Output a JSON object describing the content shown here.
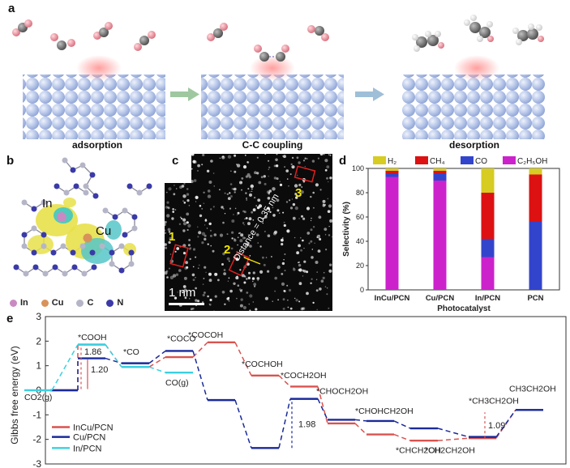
{
  "panel_a": {
    "label": "a",
    "stages": [
      "adsorption",
      "C-C coupling",
      "desorption"
    ]
  },
  "panel_b": {
    "label": "b",
    "in_label": "In",
    "cu_label": "Cu",
    "legend": [
      {
        "text": "In",
        "color": "#c98ac4"
      },
      {
        "text": "Cu",
        "color": "#d9925a"
      },
      {
        "text": "C",
        "color": "#b5b5c8"
      },
      {
        "text": "N",
        "color": "#3a3aa8"
      }
    ]
  },
  "panel_c": {
    "label": "c",
    "sites": [
      "1",
      "2",
      "3"
    ],
    "distance_text": "Distance = 0.35 nm",
    "scale_bar": "1 nm"
  },
  "panel_d": {
    "label": "d",
    "chart_data": {
      "type": "bar",
      "stacked": true,
      "categories": [
        "InCu/PCN",
        "Cu/PCN",
        "In/PCN",
        "PCN"
      ],
      "series": [
        {
          "name": "C2H5OH",
          "color": "#cc22cc",
          "values": [
            93,
            90,
            27,
            0
          ]
        },
        {
          "name": "CO",
          "color": "#3344cc",
          "values": [
            3,
            6,
            15,
            56
          ]
        },
        {
          "name": "CH4",
          "color": "#dd1111",
          "values": [
            2,
            2,
            38,
            39
          ]
        },
        {
          "name": "H2",
          "color": "#d6cc22",
          "values": [
            2,
            2,
            20,
            5
          ]
        }
      ],
      "legend_labels": [
        "H₂",
        "CH₄",
        "CO",
        "C₂H₅OH"
      ],
      "xlabel": "Photocatalyst",
      "ylabel": "Selectivity (%)",
      "ylim": [
        0,
        100
      ],
      "yticks": [
        0,
        20,
        40,
        60,
        80,
        100
      ]
    }
  },
  "panel_e": {
    "label": "e",
    "chart_data": {
      "type": "line",
      "ylabel": "Gibbs free energy (eV)",
      "ylim": [
        -3,
        3
      ],
      "yticks": [
        "3",
        "2",
        "1",
        "0",
        "-1",
        "-2",
        "-3"
      ],
      "series": [
        {
          "name": "InCu/PCN",
          "color": "#d9534f",
          "levels": [
            0,
            1.86,
            0.95,
            1.35,
            1.95,
            0.6,
            0.15,
            -1.35,
            -1.8,
            -2.05,
            -1.95,
            -0.8
          ]
        },
        {
          "name": "Cu/PCN",
          "color": "#1a2a9a",
          "levels": [
            0,
            1.3,
            1.1,
            1.6,
            -0.4,
            -2.35,
            -0.35,
            -1.2,
            -1.25,
            -1.55,
            -1.9,
            -0.8
          ]
        },
        {
          "name": "In/PCN",
          "color": "#3ad0e0",
          "levels": [
            0,
            1.86,
            0.95,
            0.72
          ]
        }
      ],
      "state_labels": [
        "*COOH",
        "*CO",
        "*COCO",
        "*COCOH",
        "*COCHOH",
        "*COCH2OH",
        "*CHOCH2OH",
        "*CHOHCH2OH",
        "*CHCH2OH",
        "*CH2CH2OH",
        "*CH3CH2OH",
        "CH3CH2OH",
        "CO2(g)",
        "CO(g)"
      ],
      "annotations": [
        "1.86",
        "1.20",
        "1.98",
        "1.09"
      ]
    }
  }
}
